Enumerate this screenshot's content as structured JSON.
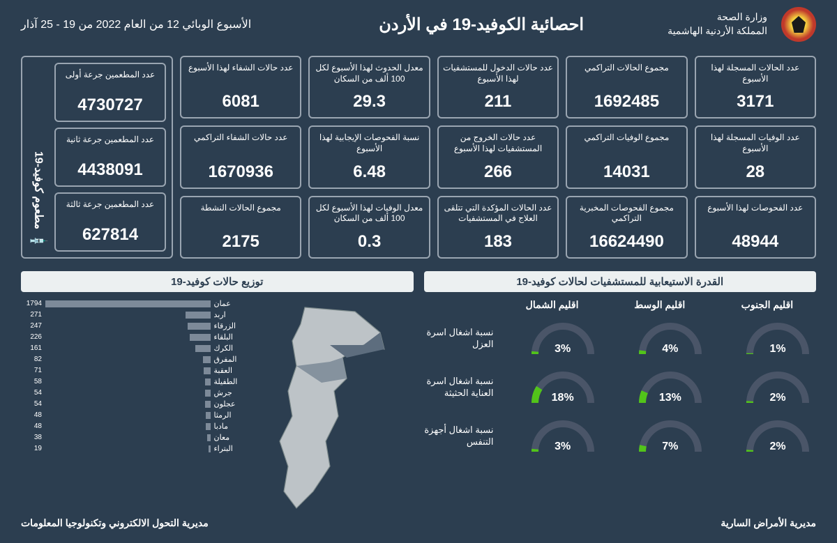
{
  "header": {
    "ministry_line1": "وزارة الصحة",
    "ministry_line2": "المملكة الأردنية الهاشمية",
    "title": "احصائية الكوفيد-19 في الأردن",
    "week": "الأسبوع الوبائي 12 من العام 2022 من 19 - 25 آذار"
  },
  "stats": [
    {
      "label": "عدد الحالات المسجلة لهذا الأسبوع",
      "value": "3171"
    },
    {
      "label": "مجموع الحالات التراكمي",
      "value": "1692485"
    },
    {
      "label": "عدد حالات الدخول للمستشفيات لهذا الأسبوع",
      "value": "211"
    },
    {
      "label": "معدل الحدوث لهذا الأسبوع لكل 100 ألف من السكان",
      "value": "29.3"
    },
    {
      "label": "عدد حالات الشفاء لهذا الأسبوع",
      "value": "6081"
    },
    {
      "label": "عدد الوفيات المسجلة لهذا الأسبوع",
      "value": "28"
    },
    {
      "label": "مجموع الوفيات التراكمي",
      "value": "14031"
    },
    {
      "label": "عدد حالات الخروج من المستشفيات لهذا الأسبوع",
      "value": "266"
    },
    {
      "label": "نسبة الفحوصات الإيجابية لهذا الأسبوع",
      "value": "6.48"
    },
    {
      "label": "عدد حالات الشفاء التراكمي",
      "value": "1670936"
    },
    {
      "label": "عدد الفحوصات لهذا الأسبوع",
      "value": "48944"
    },
    {
      "label": "مجموع الفحوصات المخبرية التراكمي",
      "value": "16624490"
    },
    {
      "label": "عدد الحالات المؤكدة التي تتلقى العلاج في المستشفيات",
      "value": "183"
    },
    {
      "label": "معدل الوفيات لهذا الأسبوع لكل 100 ألف من السكان",
      "value": "0.3"
    },
    {
      "label": "مجموع الحالات النشطة",
      "value": "2175"
    }
  ],
  "vaccine": {
    "section_label": "مطعوم كوفيد-19",
    "cards": [
      {
        "label": "عدد المطعمين جرعة أولى",
        "value": "4730727"
      },
      {
        "label": "عدد المطعمين جرعة ثانية",
        "value": "4438091"
      },
      {
        "label": "عدد المطعمين جرعة ثالثة",
        "value": "627814"
      }
    ]
  },
  "capacity": {
    "title": "القدرة الاستيعابية للمستشفيات لحالات كوفيد-19",
    "regions": [
      "اقليم الشمال",
      "اقليم الوسط",
      "اقليم الجنوب"
    ],
    "rows": [
      {
        "label": "نسبة اشغال اسرة العزل",
        "values": [
          3,
          4,
          1
        ]
      },
      {
        "label": "نسبة اشغال اسرة العناية الحثيثة",
        "values": [
          18,
          13,
          2
        ]
      },
      {
        "label": "نسبة اشغال أجهزة التنفس",
        "values": [
          3,
          7,
          2
        ]
      }
    ],
    "gauge_track_color": "#4a5568",
    "gauge_fill_color": "#52c41a"
  },
  "distribution": {
    "title": "توزيع حالات كوفيد-19",
    "max_value": 1794,
    "bar_color": "#7d8a99",
    "bars": [
      {
        "label": "عمان",
        "value": 1794
      },
      {
        "label": "اربد",
        "value": 271
      },
      {
        "label": "الزرقاء",
        "value": 247
      },
      {
        "label": "البلقاء",
        "value": 226
      },
      {
        "label": "الكرك",
        "value": 161
      },
      {
        "label": "المفرق",
        "value": 82
      },
      {
        "label": "العقبة",
        "value": 71
      },
      {
        "label": "الطفيلة",
        "value": 58
      },
      {
        "label": "جرش",
        "value": 54
      },
      {
        "label": "عجلون",
        "value": 54
      },
      {
        "label": "الرمثا",
        "value": 48
      },
      {
        "label": "مادبا",
        "value": 48
      },
      {
        "label": "معان",
        "value": 38
      },
      {
        "label": "البتراء",
        "value": 19
      }
    ]
  },
  "footer": {
    "right": "مديرية الأمراض السارية",
    "left": "مديرية التحول الالكتروني وتكنولوجيا المعلومات"
  }
}
